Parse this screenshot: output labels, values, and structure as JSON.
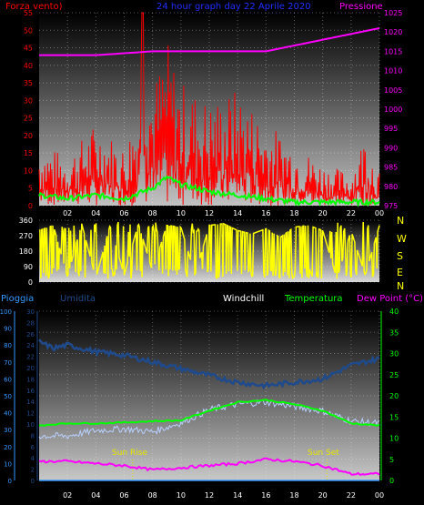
{
  "colors": {
    "background": "#000000",
    "wind": "#ff0000",
    "wind_avg": "#00ff00",
    "pressure": "#ff00ff",
    "direction": "#ffff00",
    "humidity": "#1f4a8c",
    "windchill": "#b8d0ff",
    "temperature": "#00ff00",
    "dewpoint": "#ff00ff",
    "rain": "#3399ff",
    "title": "#1e2fff",
    "white": "#ffffff"
  },
  "header": {
    "wind_label": "Forza vento)",
    "title": "24 hour graph day  22 Aprile 2020",
    "pressure_label": "Pressione"
  },
  "legend": {
    "rain": "Pioggia",
    "humidity": "Umidita",
    "windchill": "Windchill",
    "temperature": "Temperatura",
    "dewpoint": "Dew Point (°C)"
  },
  "sun": {
    "rise_label": "Sun Rise",
    "set_label": "Sun Set"
  },
  "chart_data": [
    {
      "type": "line",
      "id": "wind",
      "x_ticks": [
        "02",
        "04",
        "06",
        "08",
        "10",
        "12",
        "14",
        "16",
        "18",
        "20",
        "22",
        "00"
      ],
      "y_left_ticks": [
        "0",
        "5",
        "10",
        "15",
        "20",
        "25",
        "30",
        "35",
        "40",
        "45",
        "50",
        "55"
      ],
      "y_left_range": [
        0,
        55
      ],
      "y_right_ticks": [
        "975",
        "980",
        "985",
        "990",
        "995",
        "1000",
        "1005",
        "1010",
        "1015",
        "1020",
        "1025"
      ],
      "y_right_range": [
        975,
        1025
      ],
      "series": [
        {
          "role": "wind_speed",
          "x": [
            0,
            2,
            4,
            6,
            7,
            7.3,
            8,
            9,
            10,
            12,
            14,
            16,
            18,
            20,
            22,
            23,
            24
          ],
          "values": [
            15,
            12,
            20,
            14,
            25,
            55,
            28,
            40,
            30,
            25,
            28,
            20,
            15,
            10,
            8,
            18,
            8
          ]
        },
        {
          "role": "wind_average",
          "x": [
            0,
            2,
            4,
            6,
            8,
            9,
            10,
            12,
            14,
            16,
            18,
            20,
            22,
            24
          ],
          "values": [
            3,
            2,
            3,
            2,
            5,
            8,
            6,
            4,
            3,
            2,
            1,
            1,
            1,
            1
          ]
        },
        {
          "role": "pressure",
          "x": [
            0,
            4,
            8,
            12,
            16,
            20,
            24
          ],
          "values": [
            1014,
            1014,
            1015,
            1015,
            1015,
            1018,
            1021
          ]
        }
      ]
    },
    {
      "type": "line",
      "id": "direction",
      "y_left_ticks": [
        "0",
        "90",
        "180",
        "270",
        "360"
      ],
      "y_range": [
        0,
        360
      ],
      "y_right_ticks": [
        "N",
        "W",
        "S",
        "E",
        "N"
      ],
      "series": [
        {
          "role": "wind_direction",
          "x": [
            0,
            1,
            2,
            3,
            4,
            5,
            6,
            7,
            8,
            9,
            10,
            11,
            12,
            13,
            14,
            15,
            16,
            17,
            18,
            19,
            20,
            21,
            22,
            23,
            24
          ],
          "values": [
            300,
            330,
            30,
            340,
            20,
            330,
            40,
            340,
            60,
            330,
            320,
            40,
            330,
            340,
            300,
            280,
            310,
            260,
            320,
            330,
            300,
            20,
            300,
            40,
            330
          ]
        }
      ]
    },
    {
      "type": "line",
      "id": "temperature",
      "y_left_ticks": [
        "0",
        "10",
        "20",
        "30",
        "40",
        "50",
        "60",
        "70",
        "80",
        "90",
        "100"
      ],
      "y_mid_ticks": [
        "0",
        "2",
        "4",
        "6",
        "8",
        "10",
        "12",
        "14",
        "16",
        "18",
        "20",
        "22",
        "24",
        "26",
        "28",
        "30"
      ],
      "y_right_ticks": [
        "0",
        "5",
        "10",
        "15",
        "20",
        "25",
        "30",
        "35",
        "40"
      ],
      "y_right_range": [
        0,
        40
      ],
      "series": [
        {
          "role": "humidity",
          "x": [
            0,
            1,
            2,
            4,
            6,
            8,
            10,
            12,
            14,
            16,
            18,
            20,
            21,
            22,
            23,
            24
          ],
          "values": [
            82,
            78,
            80,
            76,
            74,
            70,
            66,
            62,
            58,
            56,
            58,
            60,
            64,
            68,
            70,
            72
          ]
        },
        {
          "role": "windchill",
          "x": [
            0,
            2,
            4,
            6,
            8,
            10,
            12,
            14,
            16,
            18,
            20,
            22,
            24
          ],
          "values": [
            10.5,
            10.5,
            11.8,
            12.2,
            11.5,
            13.6,
            16.7,
            18.0,
            18.5,
            17.5,
            16.4,
            14.0,
            13.5
          ]
        },
        {
          "role": "temperature",
          "x": [
            0,
            2,
            4,
            6,
            8,
            10,
            12,
            14,
            16,
            18,
            20,
            22,
            24
          ],
          "values": [
            13.0,
            13.5,
            13.5,
            13.7,
            14.0,
            14.2,
            16.5,
            18.5,
            19.0,
            18.0,
            16.5,
            13.5,
            13.0
          ]
        },
        {
          "role": "dewpoint",
          "x": [
            0,
            2,
            4,
            6,
            8,
            10,
            12,
            14,
            16,
            18,
            20,
            22,
            24
          ],
          "values": [
            4.5,
            4.5,
            4.0,
            3.5,
            2.5,
            3.0,
            3.5,
            4.0,
            5.0,
            4.5,
            3.5,
            1.5,
            1.5
          ]
        },
        {
          "role": "rain",
          "x": [
            0,
            24
          ],
          "values": [
            0,
            0
          ]
        }
      ],
      "sunrise_hour": 6.6,
      "sunset_hour": 20.3
    }
  ]
}
